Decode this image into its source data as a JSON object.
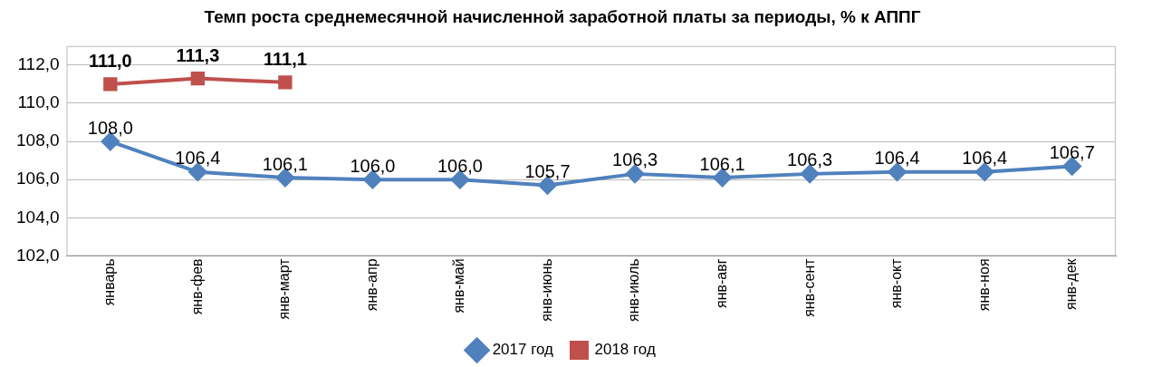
{
  "chart_data": {
    "type": "line",
    "title": "Темп роста среднемесячной начисленной заработной платы за периоды, % к АППГ",
    "categories": [
      "январь",
      "янв-фев",
      "янв-март",
      "янв-апр",
      "янв-май",
      "янв-июнь",
      "янв-июль",
      "янв-авг",
      "янв-сент",
      "янв-окт",
      "янв-ноя",
      "янв-дек"
    ],
    "series": [
      {
        "name": "2017 год",
        "color": "#4f81bd",
        "marker": "diamond",
        "values": [
          108.0,
          106.4,
          106.1,
          106.0,
          106.0,
          105.7,
          106.3,
          106.1,
          106.3,
          106.4,
          106.4,
          106.7
        ],
        "value_labels": [
          "108,0",
          "106,4",
          "106,1",
          "106,0",
          "106,0",
          "105,7",
          "106,3",
          "106,1",
          "106,3",
          "106,4",
          "106,4",
          "106,7"
        ]
      },
      {
        "name": "2018 год",
        "color": "#c0504d",
        "marker": "square",
        "values": [
          111.0,
          111.3,
          111.1,
          null,
          null,
          null,
          null,
          null,
          null,
          null,
          null,
          null
        ],
        "value_labels": [
          "111,0",
          "111,3",
          "111,1",
          null,
          null,
          null,
          null,
          null,
          null,
          null,
          null,
          null
        ]
      }
    ],
    "ylim": [
      102,
      113
    ],
    "yticks": [
      {
        "value": 102,
        "label": "102,0"
      },
      {
        "value": 104,
        "label": "104,0"
      },
      {
        "value": 106,
        "label": "106,0"
      },
      {
        "value": 108,
        "label": "108,0"
      },
      {
        "value": 110,
        "label": "110,0"
      },
      {
        "value": 112,
        "label": "112,0"
      }
    ],
    "grid": "y",
    "legend": "bottom",
    "line_style": "solid"
  }
}
